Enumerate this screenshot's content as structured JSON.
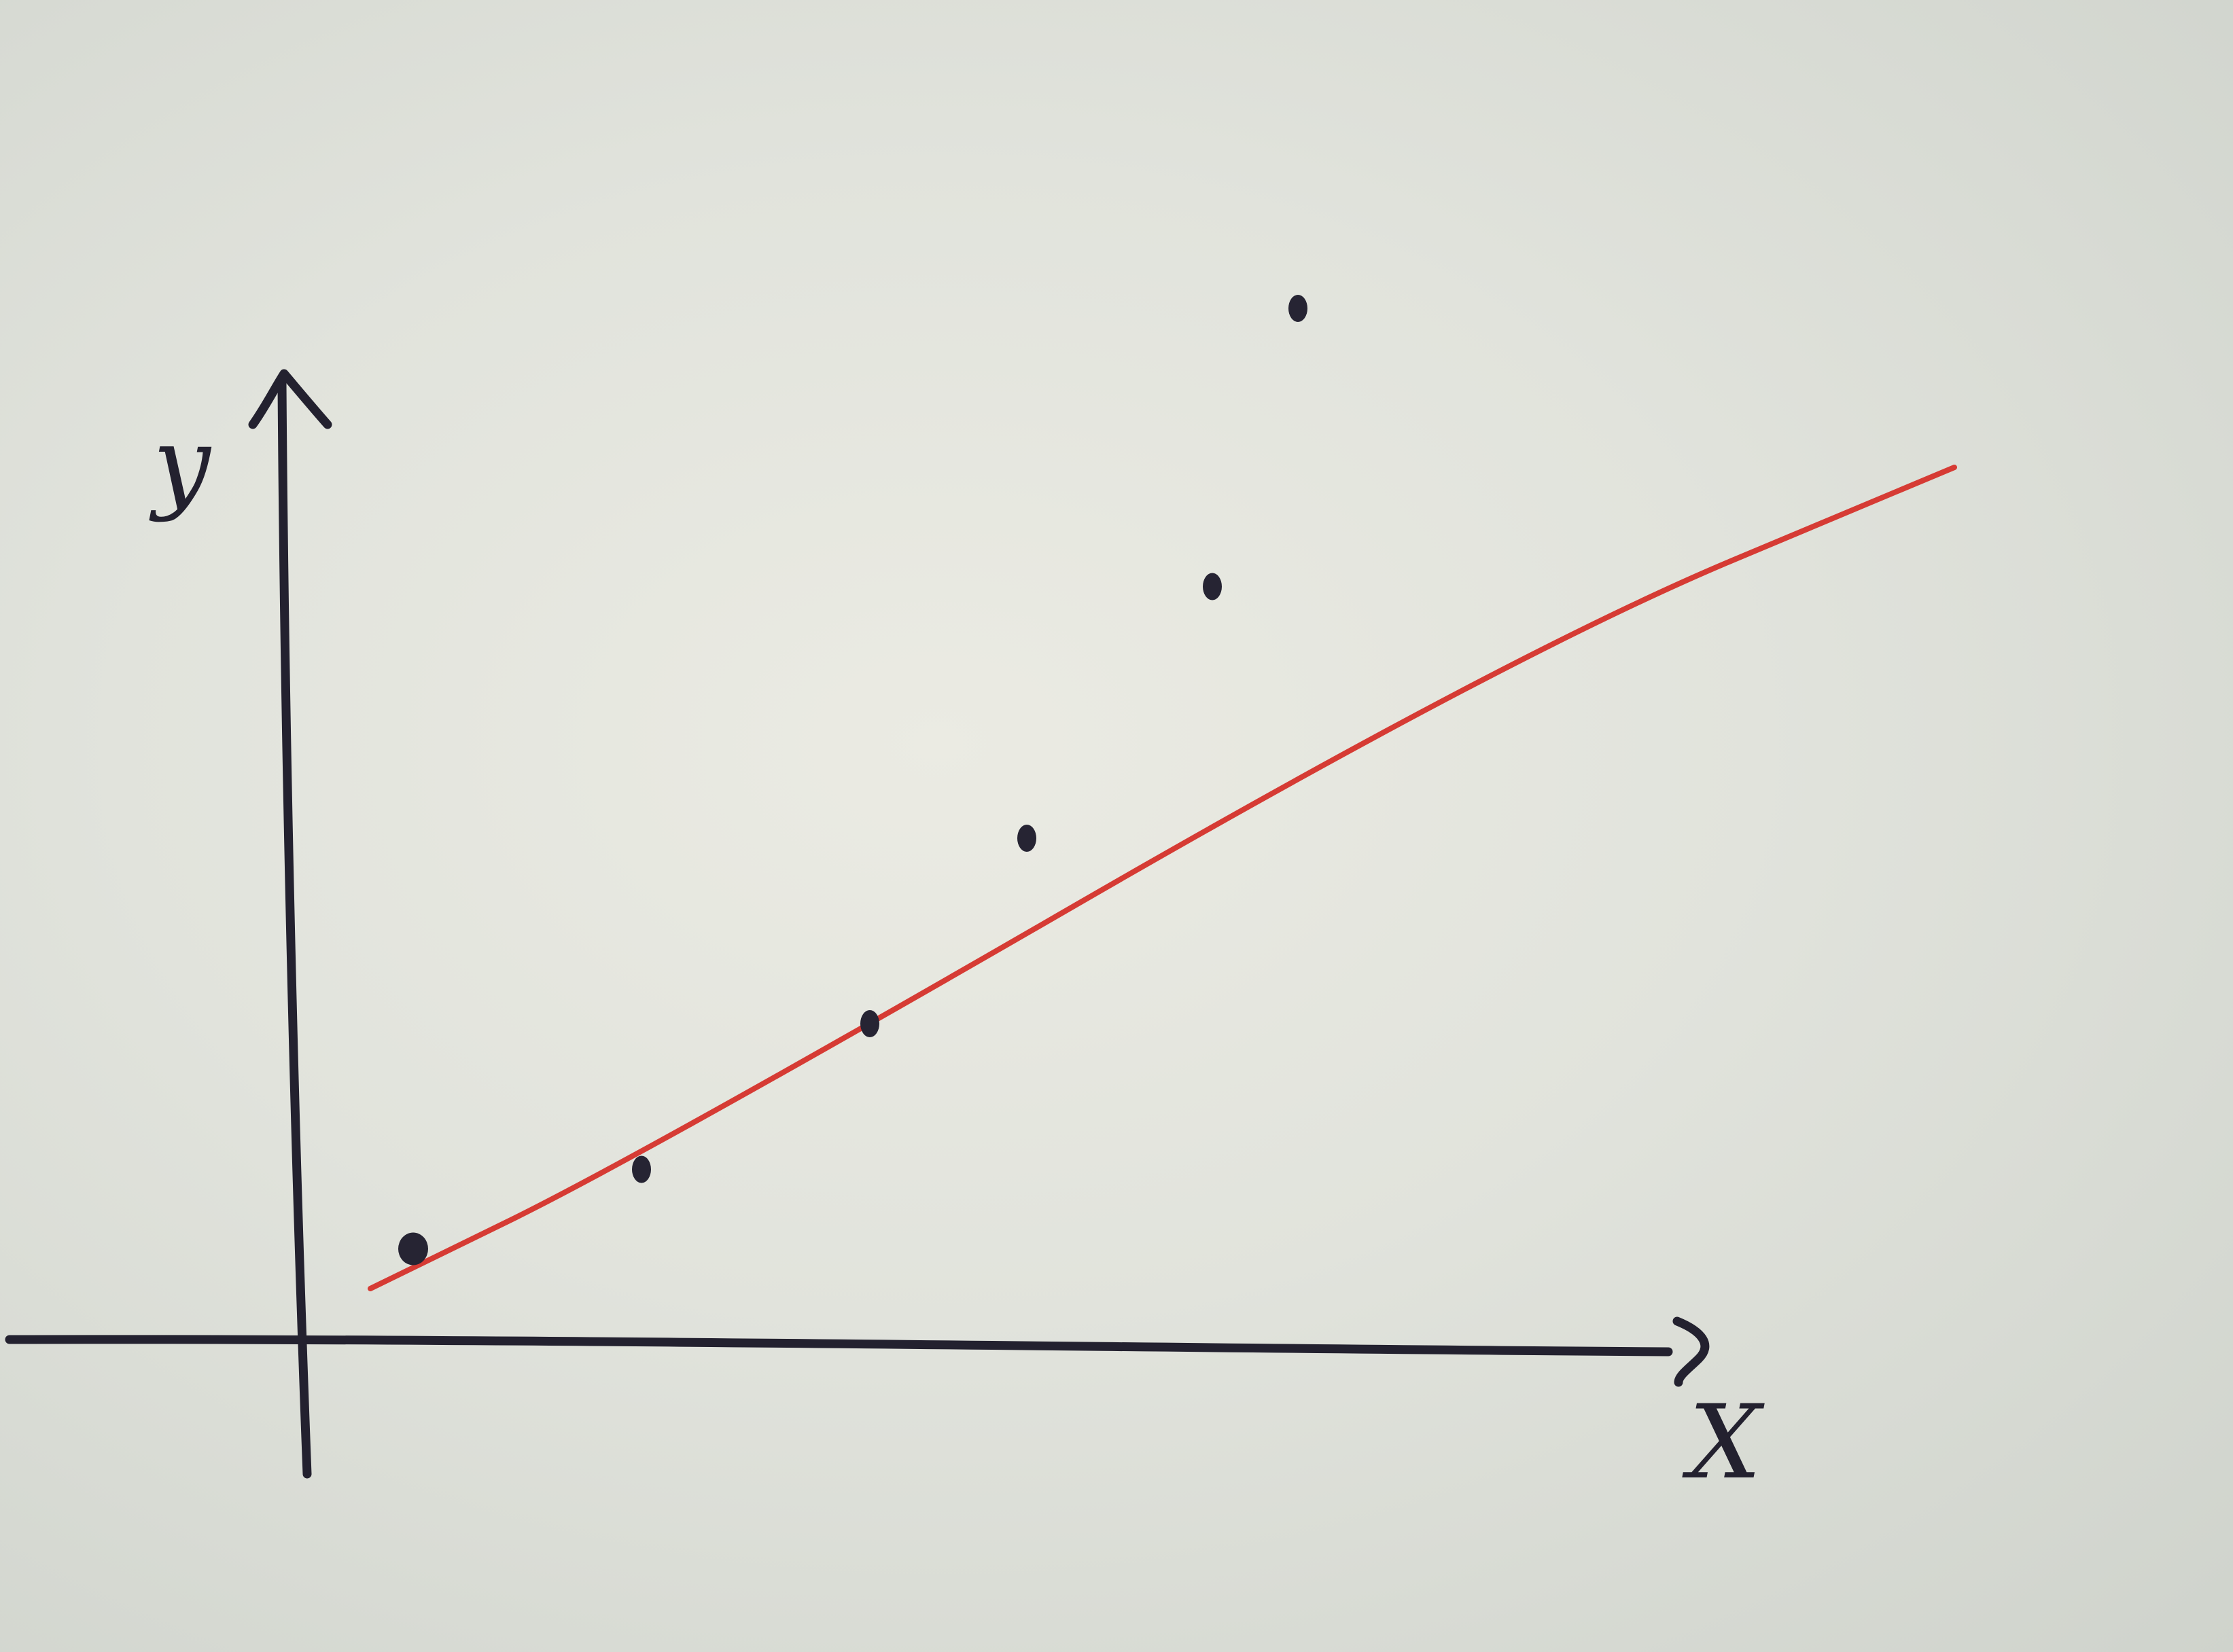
{
  "chart_data": {
    "type": "scatter",
    "xlabel": "X",
    "ylabel": "y",
    "xlim": [
      0,
      10
    ],
    "ylim": [
      0,
      10
    ],
    "grid": false,
    "legend": "none",
    "series": [
      {
        "kind": "points",
        "x": [
          0.8,
          2.4,
          4.0,
          5.1,
          6.4,
          7.0
        ],
        "y": [
          0.7,
          1.3,
          2.4,
          3.8,
          5.7,
          7.8
        ]
      },
      {
        "kind": "line",
        "x": [
          0.5,
          2.4,
          8.5,
          11.6
        ],
        "y": [
          0.4,
          1.4,
          5.2,
          6.6
        ]
      }
    ],
    "colors": {
      "ink": "#23212f",
      "fit_line": "#d63b34"
    }
  }
}
